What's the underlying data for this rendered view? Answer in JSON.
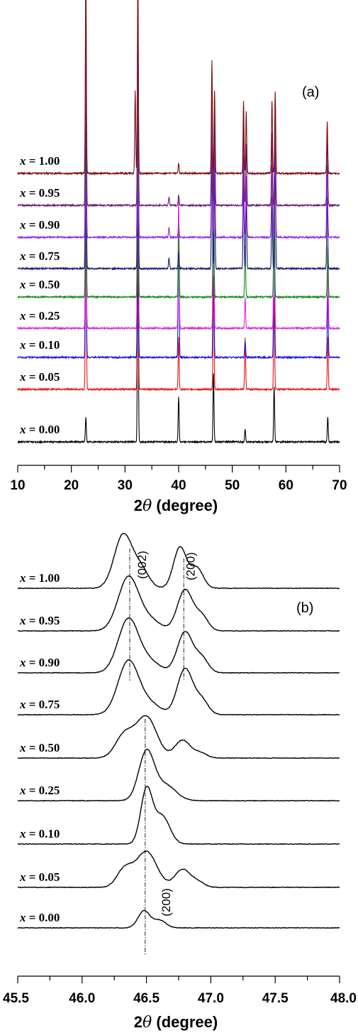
{
  "chart_data": [
    {
      "panel": "(a)",
      "type": "line",
      "xlabel_prefix": "2",
      "xlabel_symbol": "θ",
      "xlabel_suffix": " (degree)",
      "xlim": [
        10,
        70
      ],
      "xticks": [
        10,
        20,
        30,
        40,
        50,
        60,
        70
      ],
      "yaxis_visible": false,
      "grid": false,
      "series": [
        {
          "name": "x = 0.00",
          "color": "#000000",
          "peaks": [
            [
              22.7,
              0.12
            ],
            [
              32.4,
              1.0
            ],
            [
              40.0,
              0.22
            ],
            [
              46.5,
              0.33
            ],
            [
              52.4,
              0.06
            ],
            [
              57.8,
              0.27
            ],
            [
              67.8,
              0.12
            ]
          ]
        },
        {
          "name": "x = 0.05",
          "color": "#e8141c",
          "peaks": [
            [
              22.7,
              0.85
            ],
            [
              32.4,
              1.0
            ],
            [
              40.0,
              0.25
            ],
            [
              46.5,
              0.55
            ],
            [
              52.4,
              0.25
            ],
            [
              57.8,
              0.45
            ],
            [
              67.8,
              0.25
            ]
          ]
        },
        {
          "name": "x = 0.10",
          "color": "#1a1ad6",
          "peaks": [
            [
              22.7,
              0.85
            ],
            [
              32.4,
              1.0
            ],
            [
              40.0,
              0.65
            ],
            [
              46.5,
              0.75
            ],
            [
              52.4,
              0.08
            ],
            [
              57.8,
              0.75
            ],
            [
              67.8,
              0.3
            ]
          ]
        },
        {
          "name": "x = 0.25",
          "color": "#e024e0",
          "peaks": [
            [
              22.7,
              0.85
            ],
            [
              32.4,
              1.0
            ],
            [
              40.0,
              0.65
            ],
            [
              46.5,
              0.75
            ],
            [
              52.4,
              0.15
            ],
            [
              57.8,
              0.75
            ],
            [
              67.8,
              0.3
            ]
          ]
        },
        {
          "name": "x = 0.50",
          "color": "#148a14",
          "peaks": [
            [
              22.7,
              0.85
            ],
            [
              32.4,
              1.0
            ],
            [
              40.0,
              0.3
            ],
            [
              46.5,
              0.65
            ],
            [
              52.4,
              0.25
            ],
            [
              57.8,
              0.55
            ],
            [
              67.8,
              0.25
            ]
          ]
        },
        {
          "name": "x = 0.75",
          "color": "#1c1c7c",
          "peaks": [
            [
              22.7,
              0.95
            ],
            [
              32.4,
              1.0
            ],
            [
              38.2,
              0.05
            ],
            [
              40.0,
              0.08
            ],
            [
              46.2,
              0.55
            ],
            [
              46.7,
              0.45
            ],
            [
              52.1,
              0.45
            ],
            [
              52.6,
              0.35
            ],
            [
              57.4,
              0.35
            ],
            [
              58.0,
              0.5
            ],
            [
              67.7,
              0.35
            ]
          ]
        },
        {
          "name": "x = 0.90",
          "color": "#9a2ad8",
          "peaks": [
            [
              22.7,
              0.95
            ],
            [
              32.4,
              1.0
            ],
            [
              38.2,
              0.05
            ],
            [
              40.0,
              0.06
            ],
            [
              46.2,
              0.55
            ],
            [
              46.7,
              0.45
            ],
            [
              52.1,
              0.4
            ],
            [
              52.6,
              0.3
            ],
            [
              57.4,
              0.35
            ],
            [
              58.0,
              0.45
            ],
            [
              67.7,
              0.35
            ]
          ]
        },
        {
          "name": "x = 0.95",
          "color": "#6a1e78",
          "peaks": [
            [
              22.7,
              1.0
            ],
            [
              32.4,
              1.0
            ],
            [
              38.2,
              0.04
            ],
            [
              40.0,
              0.05
            ],
            [
              46.2,
              0.55
            ],
            [
              46.7,
              0.45
            ],
            [
              52.1,
              0.4
            ],
            [
              52.6,
              0.3
            ],
            [
              57.4,
              0.35
            ],
            [
              58.0,
              0.45
            ],
            [
              67.7,
              0.35
            ]
          ]
        },
        {
          "name": "x = 1.00",
          "color": "#7a1010",
          "peaks": [
            [
              22.7,
              1.0
            ],
            [
              31.9,
              0.4
            ],
            [
              32.4,
              1.0
            ],
            [
              40.0,
              0.05
            ],
            [
              46.2,
              0.55
            ],
            [
              46.7,
              0.4
            ],
            [
              52.1,
              0.35
            ],
            [
              52.6,
              0.3
            ],
            [
              57.4,
              0.35
            ],
            [
              58.0,
              0.4
            ],
            [
              67.7,
              0.25
            ]
          ]
        }
      ]
    },
    {
      "panel": "(b)",
      "type": "line",
      "xlabel_prefix": "2",
      "xlabel_symbol": "θ",
      "xlabel_suffix": " (degree)",
      "xlim": [
        45.5,
        48.0
      ],
      "xticks": [
        "45.5",
        "46.0",
        "46.5",
        "47.0",
        "47.5",
        "48.0"
      ],
      "yaxis_visible": false,
      "grid": false,
      "annotations": [
        {
          "text": "(002)",
          "x": 46.37
        },
        {
          "text": "(200)",
          "x": 46.79
        },
        {
          "text": "(200)",
          "x": 46.49
        }
      ],
      "series": [
        {
          "name": "x = 0.00",
          "color": "#000000",
          "peaks": [
            [
              46.48,
              0.33,
              0.045
            ],
            [
              46.6,
              0.15,
              0.05
            ]
          ]
        },
        {
          "name": "x = 0.05",
          "color": "#000000",
          "peaks": [
            [
              46.33,
              0.35,
              0.06
            ],
            [
              46.5,
              0.7,
              0.08
            ],
            [
              46.78,
              0.35,
              0.06
            ],
            [
              46.9,
              0.1,
              0.05
            ]
          ]
        },
        {
          "name": "x = 0.10",
          "color": "#000000",
          "peaks": [
            [
              46.5,
              1.05,
              0.045
            ],
            [
              46.62,
              0.55,
              0.06
            ]
          ]
        },
        {
          "name": "x = 0.25",
          "color": "#000000",
          "peaks": [
            [
              46.5,
              0.95,
              0.06
            ],
            [
              46.65,
              0.3,
              0.08
            ]
          ]
        },
        {
          "name": "x = 0.50",
          "color": "#000000",
          "peaks": [
            [
              46.33,
              0.45,
              0.07
            ],
            [
              46.5,
              0.8,
              0.08
            ],
            [
              46.78,
              0.35,
              0.06
            ],
            [
              46.92,
              0.1,
              0.05
            ]
          ]
        },
        {
          "name": "x = 0.75",
          "color": "#000000",
          "peaks": [
            [
              46.36,
              1.05,
              0.08
            ],
            [
              46.53,
              0.2,
              0.08
            ],
            [
              46.8,
              0.9,
              0.06
            ],
            [
              46.93,
              0.28,
              0.05
            ]
          ]
        },
        {
          "name": "x = 0.90",
          "color": "#000000",
          "peaks": [
            [
              46.36,
              1.05,
              0.08
            ],
            [
              46.53,
              0.2,
              0.08
            ],
            [
              46.8,
              0.8,
              0.06
            ],
            [
              46.93,
              0.28,
              0.05
            ]
          ]
        },
        {
          "name": "x = 0.95",
          "color": "#000000",
          "peaks": [
            [
              46.36,
              1.05,
              0.08
            ],
            [
              46.53,
              0.2,
              0.08
            ],
            [
              46.8,
              0.8,
              0.06
            ],
            [
              46.93,
              0.28,
              0.05
            ]
          ]
        },
        {
          "name": "x = 1.00",
          "color": "#000000",
          "peaks": [
            [
              46.32,
              1.05,
              0.07
            ],
            [
              46.46,
              0.35,
              0.06
            ],
            [
              46.76,
              0.8,
              0.05
            ],
            [
              46.89,
              0.4,
              0.05
            ]
          ]
        }
      ]
    }
  ]
}
